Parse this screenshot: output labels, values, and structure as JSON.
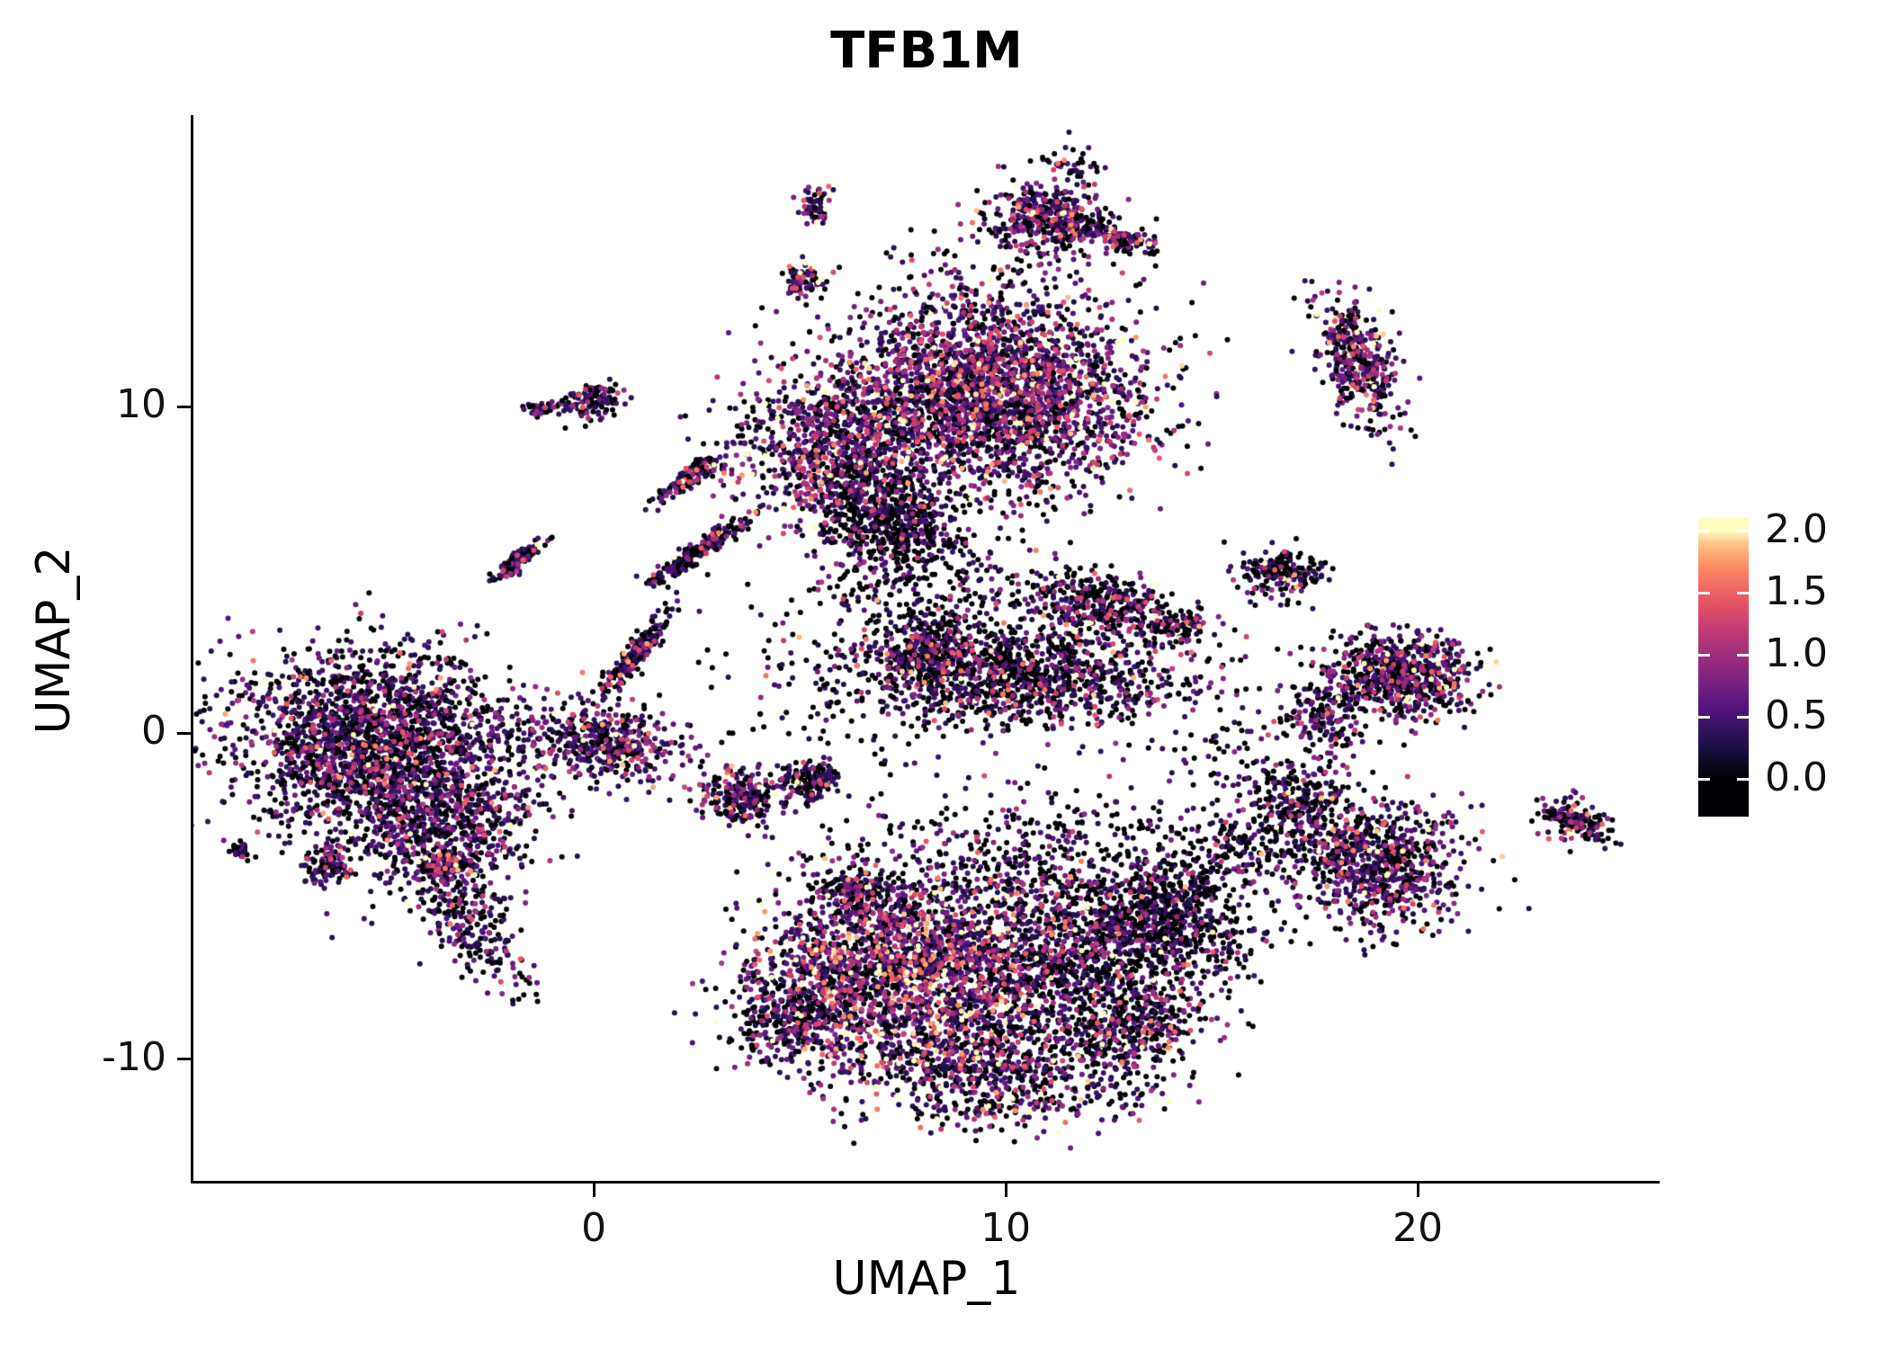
{
  "title": "TFB1M",
  "axes": {
    "xlabel": "UMAP_1",
    "ylabel": "UMAP_2",
    "xlim": [
      -9.72,
      25.87
    ],
    "ylim": [
      -13.72,
      18.93
    ],
    "x_ticks": [
      {
        "value": 0,
        "label": "0"
      },
      {
        "value": 10,
        "label": "10"
      },
      {
        "value": 20,
        "label": "20"
      }
    ],
    "y_ticks": [
      {
        "value": -10,
        "label": "-10"
      },
      {
        "value": 0,
        "label": "0"
      },
      {
        "value": 10,
        "label": "10"
      }
    ]
  },
  "colorbar": {
    "domain": [
      0,
      2
    ],
    "frac_offset": 0.125,
    "frac_per_unit": 0.415,
    "ticks": [
      {
        "value": 0,
        "label": "0.0"
      },
      {
        "value": 0.5,
        "label": "0.5"
      },
      {
        "value": 1,
        "label": "1.0"
      },
      {
        "value": 1.5,
        "label": "1.5"
      },
      {
        "value": 2,
        "label": "2.0"
      }
    ]
  },
  "colors": {
    "background": "#ffffff",
    "axis": "#000000",
    "text": "#111111"
  },
  "chart_data": {
    "type": "scatter",
    "title": "TFB1M",
    "xlabel": "UMAP_1",
    "ylabel": "UMAP_2",
    "xlim": [
      -9.72,
      25.87
    ],
    "ylim": [
      -13.72,
      18.93
    ],
    "grid": false,
    "legend_position": "right",
    "colormap": "magma",
    "value_domain": [
      0,
      2
    ],
    "point_radius_px": 3,
    "seed": 42,
    "representation": "gaussian_cluster_mixture",
    "colormap_anchors": [
      [
        0.0,
        "#000004"
      ],
      [
        0.14,
        "#1D1147"
      ],
      [
        0.28,
        "#51127C"
      ],
      [
        0.42,
        "#822681"
      ],
      [
        0.57,
        "#B63679"
      ],
      [
        0.71,
        "#E65164"
      ],
      [
        0.85,
        "#FB8861"
      ],
      [
        0.95,
        "#FEC287"
      ],
      [
        1.0,
        "#FCFDBF"
      ]
    ],
    "clusters": [
      {
        "name": "left-main",
        "cx": -5.2,
        "cy": -0.4,
        "sx": 1.75,
        "sy": 1.45,
        "rot": -15,
        "n": 2300,
        "p0": 0.38,
        "scale": 0.38
      },
      {
        "name": "left-south",
        "cx": -3.7,
        "cy": -3.1,
        "sx": 1.15,
        "sy": 0.95,
        "rot": 20,
        "n": 520,
        "p0": 0.4,
        "scale": 0.38
      },
      {
        "name": "left-tail",
        "cx": -3.0,
        "cy": -5.9,
        "sx": 0.45,
        "sy": 1.15,
        "rot": 32,
        "n": 240,
        "p0": 0.45,
        "scale": 0.35
      },
      {
        "name": "left-dense-spot",
        "cx": -3.5,
        "cy": -4.05,
        "sx": 0.3,
        "sy": 0.22,
        "rot": 0,
        "n": 130,
        "p0": 0.35,
        "scale": 0.4
      },
      {
        "name": "left-west-spot",
        "cx": -6.5,
        "cy": -4.0,
        "sx": 0.3,
        "sy": 0.25,
        "rot": 0,
        "n": 90,
        "p0": 0.4,
        "scale": 0.35
      },
      {
        "name": "left-tiny-west",
        "cx": -8.6,
        "cy": -3.6,
        "sx": 0.15,
        "sy": 0.12,
        "rot": 0,
        "n": 30,
        "p0": 0.5,
        "scale": 0.3
      },
      {
        "name": "bridge-blob",
        "cx": 0.3,
        "cy": -0.25,
        "sx": 1.0,
        "sy": 0.55,
        "rot": -10,
        "n": 430,
        "p0": 0.38,
        "scale": 0.4
      },
      {
        "name": "bridge-streak-low",
        "cx": 1.0,
        "cy": 2.4,
        "sx": 0.75,
        "sy": 0.14,
        "rot": 55,
        "n": 210,
        "p0": 0.45,
        "scale": 0.35
      },
      {
        "name": "bridge-streak-high",
        "cx": 2.6,
        "cy": 5.6,
        "sx": 0.8,
        "sy": 0.13,
        "rot": 40,
        "n": 240,
        "p0": 0.45,
        "scale": 0.35
      },
      {
        "name": "comma-streak",
        "cx": -1.8,
        "cy": 5.3,
        "sx": 0.4,
        "sy": 0.12,
        "rot": 48,
        "n": 110,
        "p0": 0.4,
        "scale": 0.4
      },
      {
        "name": "top-main-east",
        "cx": 9.6,
        "cy": 10.4,
        "sx": 1.9,
        "sy": 1.5,
        "rot": -8,
        "n": 2700,
        "p0": 0.28,
        "scale": 0.5
      },
      {
        "name": "top-main-west",
        "cx": 5.9,
        "cy": 8.7,
        "sx": 1.25,
        "sy": 1.15,
        "rot": 15,
        "n": 950,
        "p0": 0.3,
        "scale": 0.48
      },
      {
        "name": "top-south-dark",
        "cx": 7.3,
        "cy": 6.3,
        "sx": 0.9,
        "sy": 0.8,
        "rot": 0,
        "n": 520,
        "p0": 0.55,
        "scale": 0.28
      },
      {
        "name": "top-south-sparse",
        "cx": 8.2,
        "cy": 4.2,
        "sx": 1.5,
        "sy": 1.2,
        "rot": 0,
        "n": 260,
        "p0": 0.6,
        "scale": 0.3
      },
      {
        "name": "tiny-north-a",
        "cx": 5.4,
        "cy": 16.1,
        "sx": 0.18,
        "sy": 0.32,
        "rot": 0,
        "n": 60,
        "p0": 0.35,
        "scale": 0.5
      },
      {
        "name": "north-blob",
        "cx": 11.0,
        "cy": 15.8,
        "sx": 0.75,
        "sy": 0.55,
        "rot": -10,
        "n": 420,
        "p0": 0.35,
        "scale": 0.45
      },
      {
        "name": "north-blob-tail",
        "cx": 12.7,
        "cy": 15.2,
        "sx": 0.55,
        "sy": 0.18,
        "rot": -20,
        "n": 110,
        "p0": 0.4,
        "scale": 0.45
      },
      {
        "name": "tiny-north-b",
        "cx": 5.1,
        "cy": 13.9,
        "sx": 0.22,
        "sy": 0.3,
        "rot": 0,
        "n": 80,
        "p0": 0.35,
        "scale": 0.45
      },
      {
        "name": "tiny-top",
        "cx": 11.5,
        "cy": 17.4,
        "sx": 0.45,
        "sy": 0.28,
        "rot": 0,
        "n": 40,
        "p0": 0.5,
        "scale": 0.4
      },
      {
        "name": "pair-west",
        "cx": -0.1,
        "cy": 10.15,
        "sx": 0.4,
        "sy": 0.28,
        "rot": 10,
        "n": 120,
        "p0": 0.35,
        "scale": 0.45
      },
      {
        "name": "pair-west-small",
        "cx": -1.35,
        "cy": 9.9,
        "sx": 0.16,
        "sy": 0.14,
        "rot": 0,
        "n": 40,
        "p0": 0.4,
        "scale": 0.4
      },
      {
        "name": "streak-mid-north",
        "cx": 2.4,
        "cy": 7.9,
        "sx": 0.55,
        "sy": 0.13,
        "rot": 42,
        "n": 130,
        "p0": 0.4,
        "scale": 0.45
      },
      {
        "name": "right-north",
        "cx": 18.6,
        "cy": 11.3,
        "sx": 0.42,
        "sy": 1.05,
        "rot": 18,
        "n": 400,
        "p0": 0.35,
        "scale": 0.5
      },
      {
        "name": "wing",
        "cx": 12.4,
        "cy": 3.9,
        "sx": 1.05,
        "sy": 0.5,
        "rot": -18,
        "n": 430,
        "p0": 0.4,
        "scale": 0.42
      },
      {
        "name": "wing-tip",
        "cx": 14.3,
        "cy": 3.3,
        "sx": 0.3,
        "sy": 0.2,
        "rot": 0,
        "n": 60,
        "p0": 0.45,
        "scale": 0.4
      },
      {
        "name": "mid-band",
        "cx": 10.3,
        "cy": 1.8,
        "sx": 2.0,
        "sy": 0.75,
        "rot": -3,
        "n": 1150,
        "p0": 0.45,
        "scale": 0.4
      },
      {
        "name": "mid-band-hook",
        "cx": 8.0,
        "cy": 2.6,
        "sx": 0.6,
        "sy": 0.4,
        "rot": 30,
        "n": 180,
        "p0": 0.4,
        "scale": 0.45
      },
      {
        "name": "small-mid-a",
        "cx": 3.6,
        "cy": -1.9,
        "sx": 0.55,
        "sy": 0.38,
        "rot": 10,
        "n": 240,
        "p0": 0.35,
        "scale": 0.5
      },
      {
        "name": "small-mid-b",
        "cx": 5.3,
        "cy": -1.5,
        "sx": 0.4,
        "sy": 0.3,
        "rot": 0,
        "n": 140,
        "p0": 0.4,
        "scale": 0.45
      },
      {
        "name": "small-mid-c",
        "cx": 6.4,
        "cy": -4.9,
        "sx": 0.42,
        "sy": 0.3,
        "rot": 0,
        "n": 130,
        "p0": 0.5,
        "scale": 0.35
      },
      {
        "name": "right-mid",
        "cx": 19.6,
        "cy": 1.8,
        "sx": 0.95,
        "sy": 0.65,
        "rot": -8,
        "n": 700,
        "p0": 0.4,
        "scale": 0.45
      },
      {
        "name": "right-mid-spur",
        "cx": 17.7,
        "cy": 0.5,
        "sx": 0.5,
        "sy": 0.55,
        "rot": 20,
        "n": 160,
        "p0": 0.5,
        "scale": 0.35
      },
      {
        "name": "small-right-top",
        "cx": 16.6,
        "cy": 4.9,
        "sx": 0.5,
        "sy": 0.4,
        "rot": 0,
        "n": 190,
        "p0": 0.45,
        "scale": 0.4
      },
      {
        "name": "right-low-main",
        "cx": 19.0,
        "cy": -4.0,
        "sx": 1.05,
        "sy": 0.95,
        "rot": -12,
        "n": 820,
        "p0": 0.38,
        "scale": 0.45
      },
      {
        "name": "right-low-spur",
        "cx": 17.2,
        "cy": -2.1,
        "sx": 0.6,
        "sy": 0.55,
        "rot": 35,
        "n": 220,
        "p0": 0.4,
        "scale": 0.4
      },
      {
        "name": "right-low-trail",
        "cx": 15.9,
        "cy": -3.4,
        "sx": 0.8,
        "sy": 0.7,
        "rot": 0,
        "n": 150,
        "p0": 0.55,
        "scale": 0.3
      },
      {
        "name": "far-right",
        "cx": 23.8,
        "cy": -2.7,
        "sx": 0.5,
        "sy": 0.3,
        "rot": -25,
        "n": 160,
        "p0": 0.4,
        "scale": 0.45
      },
      {
        "name": "bottom-west",
        "cx": 6.2,
        "cy": -7.3,
        "sx": 1.15,
        "sy": 1.35,
        "rot": 10,
        "n": 950,
        "p0": 0.28,
        "scale": 0.55
      },
      {
        "name": "bottom-hot",
        "cx": 8.3,
        "cy": -7.2,
        "sx": 1.2,
        "sy": 1.5,
        "rot": 0,
        "n": 1050,
        "p0": 0.22,
        "scale": 0.68
      },
      {
        "name": "bottom-east",
        "cx": 11.4,
        "cy": -6.9,
        "sx": 1.7,
        "sy": 1.5,
        "rot": 0,
        "n": 1400,
        "p0": 0.45,
        "scale": 0.4
      },
      {
        "name": "bottom-dark-east",
        "cx": 14.0,
        "cy": -5.6,
        "sx": 1.05,
        "sy": 1.15,
        "rot": -20,
        "n": 700,
        "p0": 0.62,
        "scale": 0.28
      },
      {
        "name": "bottom-south",
        "cx": 9.4,
        "cy": -10.4,
        "sx": 1.8,
        "sy": 0.85,
        "rot": -4,
        "n": 700,
        "p0": 0.38,
        "scale": 0.5
      },
      {
        "name": "bottom-west-tip",
        "cx": 4.7,
        "cy": -8.7,
        "sx": 0.8,
        "sy": 0.8,
        "rot": 25,
        "n": 320,
        "p0": 0.45,
        "scale": 0.4
      },
      {
        "name": "bottom-north-scatter",
        "cx": 9.8,
        "cy": -3.6,
        "sx": 2.3,
        "sy": 1.0,
        "rot": 0,
        "n": 300,
        "p0": 0.6,
        "scale": 0.3
      },
      {
        "name": "bottom-southeast-tip",
        "cx": 13.0,
        "cy": -9.2,
        "sx": 0.9,
        "sy": 0.6,
        "rot": 20,
        "n": 260,
        "p0": 0.45,
        "scale": 0.4
      },
      {
        "name": "sparse-center",
        "cx": 6.5,
        "cy": 1.5,
        "sx": 2.2,
        "sy": 1.8,
        "rot": 0,
        "n": 200,
        "p0": 0.65,
        "scale": 0.3
      },
      {
        "name": "sparse-right",
        "cx": 15.6,
        "cy": -0.6,
        "sx": 1.1,
        "sy": 1.1,
        "rot": 0,
        "n": 90,
        "p0": 0.6,
        "scale": 0.3
      },
      {
        "name": "sparse-top",
        "cx": 9.0,
        "cy": 13.3,
        "sx": 1.5,
        "sy": 0.8,
        "rot": 0,
        "n": 60,
        "p0": 0.6,
        "scale": 0.35
      }
    ]
  }
}
